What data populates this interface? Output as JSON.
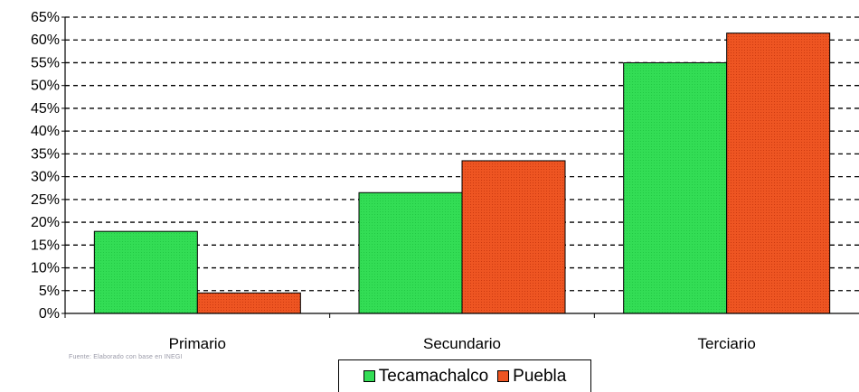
{
  "chart_data": {
    "type": "bar",
    "categories": [
      "Primario",
      "Secundario",
      "Terciario"
    ],
    "series": [
      {
        "name": "Tecamachalco",
        "values": [
          18,
          26.5,
          55
        ],
        "color": "#33dd55"
      },
      {
        "name": "Puebla",
        "values": [
          4.5,
          33.5,
          61.5
        ],
        "color": "#ee5522"
      }
    ],
    "y_ticks": [
      "0%",
      "5%",
      "10%",
      "15%",
      "20%",
      "25%",
      "30%",
      "35%",
      "40%",
      "45%",
      "50%",
      "55%",
      "60%",
      "65%"
    ],
    "ylim": [
      0,
      65
    ],
    "y_step": 5,
    "grid": "dashed horizontal",
    "legend_position": "bottom",
    "title": "",
    "xlabel": "",
    "ylabel": ""
  },
  "source_note": "Fuente: Elaborado con base en INEGI"
}
